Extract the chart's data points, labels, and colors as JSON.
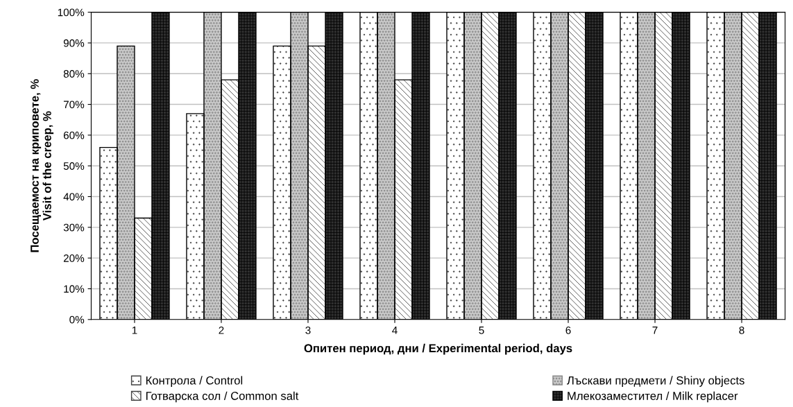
{
  "chart_data": {
    "type": "bar",
    "xlabel": "Опитен период, дни / Experimental period, days",
    "ylabel": "Посещаемост на криповете, %\nVisit of the creep, %",
    "categories": [
      "1",
      "2",
      "3",
      "4",
      "5",
      "6",
      "7",
      "8"
    ],
    "series": [
      {
        "name": "Контрола / Control",
        "color": "#ffffff",
        "values": [
          56,
          67,
          89,
          100,
          100,
          100,
          100,
          100
        ]
      },
      {
        "name": "Лъскави предмети / Shiny objects",
        "color": "#c8c8c8",
        "values": [
          89,
          100,
          100,
          100,
          100,
          100,
          100,
          100
        ]
      },
      {
        "name": "Готварска сол / Common salt",
        "color": "#ffffff",
        "values": [
          33,
          78,
          89,
          78,
          100,
          100,
          100,
          100
        ]
      },
      {
        "name": "Млекозаместител / Milk replacer",
        "color": "#303030",
        "values": [
          100,
          100,
          100,
          100,
          100,
          100,
          100,
          100
        ]
      }
    ],
    "ylim": [
      0,
      100
    ],
    "yticks": [
      {
        "value": 0,
        "label": "0%"
      },
      {
        "value": 10,
        "label": "10%"
      },
      {
        "value": 20,
        "label": "20%"
      },
      {
        "value": 30,
        "label": "30%"
      },
      {
        "value": 40,
        "label": "40%"
      },
      {
        "value": 50,
        "label": "50%"
      },
      {
        "value": 60,
        "label": "60%"
      },
      {
        "value": 70,
        "label": "70%"
      },
      {
        "value": 80,
        "label": "80%"
      },
      {
        "value": 90,
        "label": "90%"
      },
      {
        "value": 100,
        "label": "100%"
      }
    ],
    "grid": "y",
    "legend": "bottom"
  }
}
